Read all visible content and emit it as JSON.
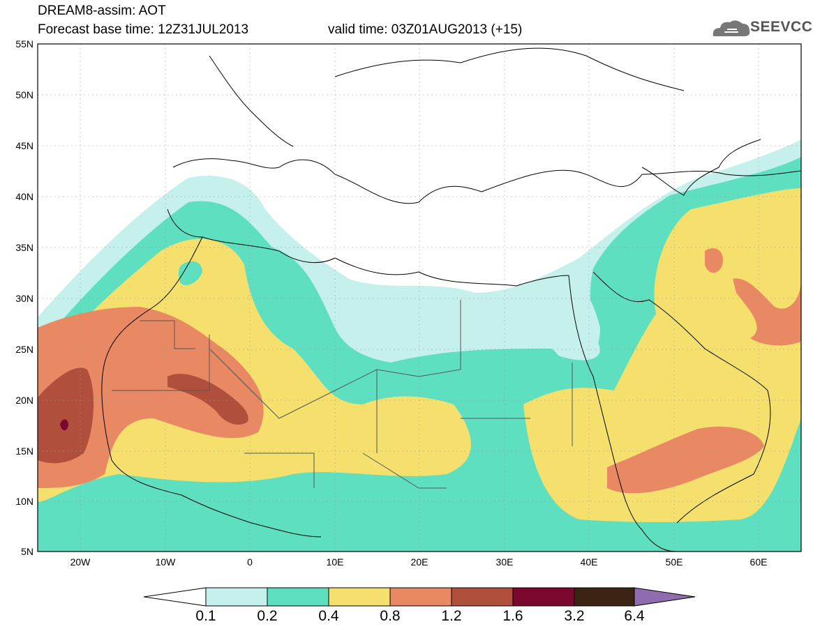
{
  "header": {
    "model": "DREAM8-assim: AOT",
    "base_time": "Forecast base time: 12Z31JUL2013",
    "valid_time": "valid time: 03Z01AUG2013 (+15)",
    "logo_text": "SEEVCCC"
  },
  "map": {
    "lat_labels": [
      "55N",
      "50N",
      "45N",
      "40N",
      "35N",
      "30N",
      "25N",
      "20N",
      "15N",
      "10N",
      "5N"
    ],
    "lon_labels": [
      "20W",
      "10W",
      "0",
      "10E",
      "20E",
      "30E",
      "40E",
      "50E",
      "60E"
    ]
  },
  "colorbar": {
    "levels": [
      "0.1",
      "0.2",
      "0.4",
      "0.8",
      "1.2",
      "1.6",
      "3.2",
      "6.4"
    ],
    "colors": [
      "#c5f0ec",
      "#5ee0c0",
      "#f5e06e",
      "#e98963",
      "#b0503c",
      "#7c0830",
      "#3b2414",
      "#8f6cae"
    ]
  }
}
